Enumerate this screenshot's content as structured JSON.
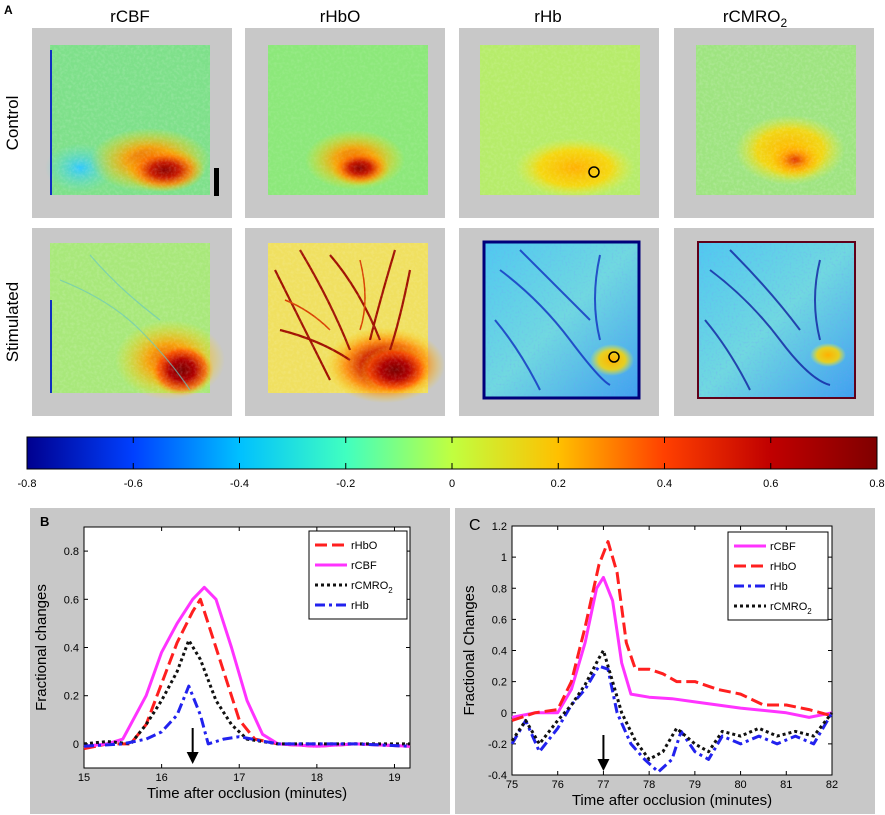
{
  "panel_a": {
    "label": "A",
    "columns": [
      "rCBF",
      "rHbO",
      "rHb",
      "rCMRO"
    ],
    "columns_sub": [
      "",
      "",
      "",
      "2"
    ],
    "rows": [
      "Control",
      "Stimulated"
    ]
  },
  "colorbar": {
    "ticks": [
      "-0.8",
      "-0.6",
      "-0.4",
      "-0.2",
      "0",
      "0.2",
      "0.4",
      "0.6",
      "0.8"
    ],
    "values": [
      -0.8,
      -0.6,
      -0.4,
      -0.2,
      0,
      0.2,
      0.4,
      0.6,
      0.8
    ],
    "colors": [
      "#00008f",
      "#0040ff",
      "#00c0ff",
      "#40ffc0",
      "#c0ff40",
      "#ffc000",
      "#ff4000",
      "#c00000",
      "#800000"
    ]
  },
  "chart_data": [
    {
      "type": "line",
      "panel": "B",
      "title": "",
      "xlabel": "Time after occlusion (minutes)",
      "ylabel": "Fractional changes",
      "xlim": [
        15,
        19.2
      ],
      "ylim": [
        -0.1,
        0.9
      ],
      "xticks": [
        15,
        16,
        17,
        18,
        19
      ],
      "xtick_labels": [
        "15",
        "16",
        "17",
        "18",
        "19"
      ],
      "yticks": [
        0,
        0.2,
        0.4,
        0.6,
        0.8
      ],
      "ytick_labels": [
        "0",
        "0.2",
        "0.4",
        "0.6",
        "0.8"
      ],
      "legend": "top-right",
      "annotation_arrow_x": 16.4,
      "series": [
        {
          "name": "rHbO",
          "color": "#ff1f1f",
          "dash": "12,5",
          "x": [
            15,
            15.3,
            15.6,
            15.8,
            16.0,
            16.2,
            16.4,
            16.5,
            16.6,
            16.8,
            17.0,
            17.2,
            17.5,
            18.0,
            18.5,
            19.2
          ],
          "y": [
            -0.02,
            0.0,
            0.0,
            0.08,
            0.25,
            0.42,
            0.55,
            0.6,
            0.5,
            0.3,
            0.1,
            0.02,
            0.0,
            -0.01,
            0.0,
            -0.01
          ]
        },
        {
          "name": "rCBF",
          "color": "#ff33ff",
          "dash": "",
          "x": [
            15,
            15.3,
            15.5,
            15.8,
            16.0,
            16.2,
            16.4,
            16.55,
            16.7,
            16.9,
            17.1,
            17.3,
            17.5,
            18.0,
            18.5,
            19.2
          ],
          "y": [
            -0.01,
            0.0,
            0.02,
            0.2,
            0.38,
            0.5,
            0.6,
            0.65,
            0.6,
            0.4,
            0.18,
            0.04,
            0.0,
            -0.01,
            0.0,
            -0.01
          ]
        },
        {
          "name": "rCMRO",
          "name_sub": "2",
          "color": "#111111",
          "dash": "3,3",
          "x": [
            15,
            15.3,
            15.6,
            15.8,
            16.0,
            16.2,
            16.35,
            16.5,
            16.7,
            16.9,
            17.1,
            17.5,
            18.0,
            18.5,
            19.2
          ],
          "y": [
            0.0,
            0.01,
            0.0,
            0.08,
            0.18,
            0.3,
            0.43,
            0.35,
            0.18,
            0.08,
            0.02,
            0.0,
            0.0,
            0.0,
            0.0
          ]
        },
        {
          "name": "rHb",
          "color": "#2222ee",
          "dash": "10,4,3,4",
          "x": [
            15,
            15.5,
            15.8,
            16.0,
            16.2,
            16.35,
            16.5,
            16.6,
            16.8,
            17.0,
            17.5,
            18.0,
            18.5,
            19.2
          ],
          "y": [
            -0.01,
            0.0,
            0.02,
            0.05,
            0.12,
            0.24,
            0.12,
            0.0,
            0.02,
            0.03,
            0.0,
            0.0,
            0.0,
            -0.01
          ]
        }
      ]
    },
    {
      "type": "line",
      "panel": "C",
      "title": "",
      "xlabel": "Time after occlusion (minutes)",
      "ylabel": "Fractional Changes",
      "xlim": [
        75,
        82
      ],
      "ylim": [
        -0.4,
        1.2
      ],
      "xticks": [
        75,
        76,
        77,
        78,
        79,
        80,
        81,
        82
      ],
      "xtick_labels": [
        "75",
        "76",
        "77",
        "78",
        "79",
        "80",
        "81",
        "82"
      ],
      "yticks": [
        -0.4,
        -0.2,
        0,
        0.2,
        0.4,
        0.6,
        0.8,
        1,
        1.2
      ],
      "ytick_labels": [
        "-0.4",
        "-0.2",
        "0",
        "0.2",
        "0.4",
        "0.6",
        "0.8",
        "1",
        "1.2"
      ],
      "legend": "top-right",
      "annotation_arrow_x": 77,
      "series": [
        {
          "name": "rCBF",
          "color": "#ff33ff",
          "dash": "",
          "x": [
            75,
            75.5,
            76.0,
            76.3,
            76.6,
            76.85,
            77.0,
            77.2,
            77.4,
            77.6,
            78.0,
            78.5,
            79.0,
            80.0,
            81.0,
            81.5,
            82.0
          ],
          "y": [
            -0.03,
            0.0,
            0.0,
            0.15,
            0.45,
            0.8,
            0.87,
            0.72,
            0.32,
            0.12,
            0.1,
            0.09,
            0.07,
            0.03,
            0.0,
            -0.03,
            0.0
          ]
        },
        {
          "name": "rHbO",
          "color": "#ff1f1f",
          "dash": "12,5",
          "x": [
            75,
            75.5,
            76.0,
            76.3,
            76.6,
            76.9,
            77.1,
            77.3,
            77.5,
            77.7,
            78.0,
            78.3,
            78.6,
            79.0,
            79.5,
            80.0,
            80.5,
            81.0,
            81.5,
            82.0
          ],
          "y": [
            -0.05,
            0.0,
            0.02,
            0.2,
            0.55,
            0.95,
            1.1,
            0.9,
            0.45,
            0.28,
            0.28,
            0.25,
            0.2,
            0.2,
            0.15,
            0.12,
            0.05,
            0.05,
            0.02,
            -0.02
          ]
        },
        {
          "name": "rHb",
          "color": "#2222ee",
          "dash": "10,4,3,4",
          "x": [
            75,
            75.3,
            75.6,
            76.0,
            76.3,
            76.6,
            76.9,
            77.1,
            77.3,
            77.6,
            77.9,
            78.2,
            78.5,
            78.7,
            79.0,
            79.3,
            79.6,
            80.0,
            80.4,
            80.8,
            81.2,
            81.6,
            82.0
          ],
          "y": [
            -0.2,
            -0.05,
            -0.25,
            -0.1,
            0.05,
            0.15,
            0.3,
            0.28,
            0.0,
            -0.2,
            -0.3,
            -0.38,
            -0.3,
            -0.12,
            -0.25,
            -0.3,
            -0.15,
            -0.2,
            -0.15,
            -0.2,
            -0.15,
            -0.2,
            0.0
          ]
        },
        {
          "name": "rCMRO",
          "name_sub": "2",
          "color": "#111111",
          "dash": "3,3",
          "x": [
            75,
            75.3,
            75.6,
            76.0,
            76.3,
            76.6,
            76.9,
            77.0,
            77.2,
            77.4,
            77.7,
            78.0,
            78.3,
            78.6,
            79.0,
            79.3,
            79.6,
            80.0,
            80.4,
            80.8,
            81.2,
            81.6,
            82.0
          ],
          "y": [
            -0.18,
            -0.05,
            -0.2,
            -0.05,
            0.05,
            0.18,
            0.35,
            0.4,
            0.2,
            0.0,
            -0.18,
            -0.3,
            -0.25,
            -0.1,
            -0.2,
            -0.25,
            -0.12,
            -0.15,
            -0.1,
            -0.15,
            -0.12,
            -0.15,
            0.0
          ]
        }
      ]
    }
  ]
}
